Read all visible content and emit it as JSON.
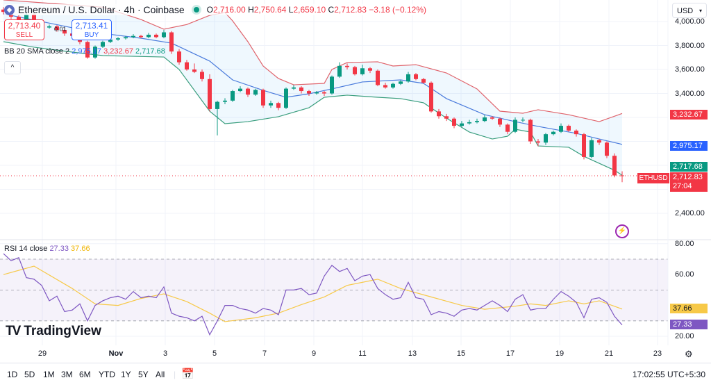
{
  "header": {
    "symbol_icon": "ethereum-icon",
    "title": "Ethereum / U.S. Dollar · 4h · Coinbase",
    "status_dot_color": "#089981",
    "ohlc": {
      "o_label": "O",
      "o": "2,716.00",
      "h_label": "H",
      "h": "2,750.64",
      "l_label": "L",
      "l": "2,659.10",
      "c_label": "C",
      "c": "2,712.83",
      "change": "−3.18 (−0.12%)"
    }
  },
  "trade": {
    "sell_price": "2,713.40",
    "sell_label": "SELL",
    "spread": "0.01",
    "buy_price": "2,713.41",
    "buy_label": "BUY"
  },
  "bb_legend": {
    "name": "BB 20 SMA close 2",
    "basis": "2,975.17",
    "upper": "3,232.67",
    "lower": "2,717.68"
  },
  "collapse_icon": "chevron-up-icon",
  "currency": {
    "selected": "USD"
  },
  "price_axis": {
    "labels": [
      "4,000.00",
      "3,800.00",
      "3,600.00",
      "3,400.00",
      "2,400.00"
    ]
  },
  "badges": {
    "upper": "3,232.67",
    "basis": "2,975.17",
    "lower": "2,717.68",
    "last": "2,712.83",
    "countdown": "27:04",
    "symbol": "ETHUSD"
  },
  "rsi": {
    "legend": "RSI 14 close",
    "value": "27.33",
    "ma": "37.66",
    "axis_labels": [
      "80.00",
      "60.00",
      "20.00"
    ]
  },
  "time_axis": [
    "29",
    "Nov",
    "3",
    "5",
    "7",
    "9",
    "11",
    "13",
    "15",
    "17",
    "19",
    "21",
    "23"
  ],
  "toolbar": {
    "ranges": [
      "1D",
      "5D",
      "1M",
      "3M",
      "6M",
      "YTD",
      "1Y",
      "5Y",
      "All"
    ],
    "goto_icon": "calendar-goto-icon",
    "clock": "17:02:55 UTC+5:30",
    "settings_icon": "gear-icon"
  },
  "logo": "TradingView",
  "colors": {
    "up": "#089981",
    "down": "#f23645",
    "bb_upper": "#e0636b",
    "bb_basis": "#4a7bdc",
    "bb_lower": "#3a9e7e",
    "rsi": "#7e57c2",
    "rsi_ma": "#f7c948"
  },
  "chart_data": [
    {
      "type": "candlestick",
      "title": "Ethereum / U.S. Dollar · 4h · Coinbase",
      "ylim": [
        2300,
        4200
      ],
      "yticks": [
        2400,
        2600,
        2800,
        3000,
        3200,
        3400,
        3600,
        3800,
        4000
      ],
      "candles": [
        [
          4100,
          4120,
          4060,
          4080
        ],
        [
          4080,
          4095,
          4020,
          4040
        ],
        [
          4040,
          4055,
          3985,
          4000
        ],
        [
          4000,
          4075,
          3990,
          4060
        ],
        [
          4060,
          4070,
          3975,
          3990
        ],
        [
          3990,
          4000,
          3930,
          3950
        ],
        [
          3950,
          3975,
          3940,
          3960
        ],
        [
          3960,
          3970,
          3915,
          3930
        ],
        [
          3930,
          3945,
          3880,
          3900
        ],
        [
          3900,
          3915,
          3860,
          3880
        ],
        [
          3880,
          3890,
          3810,
          3830
        ],
        [
          3830,
          3840,
          3690,
          3700
        ],
        [
          3700,
          3800,
          3690,
          3790
        ],
        [
          3790,
          3840,
          3780,
          3830
        ],
        [
          3830,
          3860,
          3820,
          3850
        ],
        [
          3850,
          3870,
          3840,
          3860
        ],
        [
          3860,
          3880,
          3850,
          3870
        ],
        [
          3870,
          3895,
          3860,
          3880
        ],
        [
          3880,
          3890,
          3860,
          3870
        ],
        [
          3870,
          3905,
          3860,
          3890
        ],
        [
          3890,
          3900,
          3860,
          3870
        ],
        [
          3870,
          3930,
          3860,
          3910
        ],
        [
          3910,
          3920,
          3730,
          3750
        ],
        [
          3750,
          3770,
          3640,
          3660
        ],
        [
          3660,
          3680,
          3590,
          3600
        ],
        [
          3600,
          3650,
          3570,
          3580
        ],
        [
          3580,
          3600,
          3500,
          3520
        ],
        [
          3520,
          3560,
          3250,
          3270
        ],
        [
          3270,
          3340,
          3050,
          3330
        ],
        [
          3330,
          3360,
          3310,
          3340
        ],
        [
          3340,
          3430,
          3330,
          3420
        ],
        [
          3420,
          3460,
          3410,
          3440
        ],
        [
          3440,
          3450,
          3370,
          3390
        ],
        [
          3390,
          3440,
          3380,
          3430
        ],
        [
          3430,
          3440,
          3280,
          3300
        ],
        [
          3300,
          3340,
          3280,
          3320
        ],
        [
          3320,
          3330,
          3260,
          3280
        ],
        [
          3280,
          3450,
          3270,
          3440
        ],
        [
          3440,
          3470,
          3430,
          3450
        ],
        [
          3450,
          3460,
          3400,
          3420
        ],
        [
          3420,
          3430,
          3380,
          3400
        ],
        [
          3400,
          3420,
          3390,
          3410
        ],
        [
          3410,
          3420,
          3380,
          3400
        ],
        [
          3400,
          3550,
          3390,
          3540
        ],
        [
          3540,
          3660,
          3530,
          3630
        ],
        [
          3630,
          3650,
          3600,
          3620
        ],
        [
          3620,
          3630,
          3550,
          3560
        ],
        [
          3560,
          3640,
          3550,
          3610
        ],
        [
          3610,
          3620,
          3570,
          3590
        ],
        [
          3590,
          3600,
          3460,
          3470
        ],
        [
          3470,
          3490,
          3440,
          3450
        ],
        [
          3450,
          3490,
          3440,
          3480
        ],
        [
          3480,
          3510,
          3470,
          3500
        ],
        [
          3500,
          3580,
          3490,
          3560
        ],
        [
          3560,
          3570,
          3510,
          3520
        ],
        [
          3520,
          3530,
          3480,
          3490
        ],
        [
          3490,
          3500,
          3240,
          3250
        ],
        [
          3250,
          3270,
          3190,
          3210
        ],
        [
          3210,
          3230,
          3170,
          3190
        ],
        [
          3190,
          3200,
          3110,
          3130
        ],
        [
          3130,
          3170,
          3120,
          3150
        ],
        [
          3150,
          3180,
          3140,
          3160
        ],
        [
          3160,
          3190,
          3150,
          3170
        ],
        [
          3170,
          3220,
          3160,
          3200
        ],
        [
          3200,
          3210,
          3180,
          3190
        ],
        [
          3190,
          3200,
          3120,
          3140
        ],
        [
          3140,
          3150,
          3060,
          3080
        ],
        [
          3080,
          3200,
          3070,
          3180
        ],
        [
          3180,
          3200,
          3160,
          3180
        ],
        [
          3180,
          3190,
          2980,
          3000
        ],
        [
          3000,
          3020,
          2960,
          2990
        ],
        [
          2990,
          3070,
          2970,
          3060
        ],
        [
          3060,
          3090,
          3050,
          3080
        ],
        [
          3080,
          3150,
          3070,
          3130
        ],
        [
          3130,
          3140,
          3080,
          3090
        ],
        [
          3090,
          3100,
          3040,
          3060
        ],
        [
          3060,
          3070,
          2850,
          2870
        ],
        [
          2870,
          3030,
          2860,
          3010
        ],
        [
          3010,
          3020,
          2970,
          2990
        ],
        [
          2990,
          3000,
          2860,
          2880
        ],
        [
          2880,
          2900,
          2700,
          2716
        ],
        [
          2716,
          2750.64,
          2659.1,
          2712.83
        ]
      ],
      "bollinger": {
        "upper": [
          [
            0,
            4180
          ],
          [
            13,
            4120
          ],
          [
            18,
            4017
          ],
          [
            21,
            3936
          ],
          [
            24,
            3975
          ],
          [
            27,
            4052
          ],
          [
            29,
            4075
          ],
          [
            30,
            4006
          ],
          [
            32,
            3832
          ],
          [
            34,
            3629
          ],
          [
            36,
            3525
          ],
          [
            38,
            3472
          ],
          [
            42,
            3484
          ],
          [
            43,
            3600
          ],
          [
            45,
            3658
          ],
          [
            49,
            3664
          ],
          [
            51,
            3629
          ],
          [
            54,
            3640
          ],
          [
            58,
            3571
          ],
          [
            62,
            3438
          ],
          [
            65,
            3252
          ],
          [
            68,
            3235
          ],
          [
            70,
            3264
          ],
          [
            74,
            3223
          ],
          [
            78,
            3165
          ],
          [
            81,
            3232.67
          ]
        ],
        "basis": [
          [
            0,
            4064
          ],
          [
            9,
            3948
          ],
          [
            13,
            3901
          ],
          [
            18,
            3861
          ],
          [
            22,
            3820
          ],
          [
            27,
            3670
          ],
          [
            30,
            3513
          ],
          [
            34,
            3426
          ],
          [
            37,
            3368
          ],
          [
            40,
            3397
          ],
          [
            43,
            3438
          ],
          [
            47,
            3496
          ],
          [
            52,
            3513
          ],
          [
            55,
            3484
          ],
          [
            58,
            3357
          ],
          [
            63,
            3223
          ],
          [
            67,
            3165
          ],
          [
            70,
            3125
          ],
          [
            75,
            3067
          ],
          [
            78,
            3020
          ],
          [
            81,
            2975.17
          ]
        ],
        "lower": [
          [
            0,
            3832
          ],
          [
            4,
            3786
          ],
          [
            9,
            3745
          ],
          [
            13,
            3716
          ],
          [
            21,
            3704
          ],
          [
            23,
            3600
          ],
          [
            27,
            3252
          ],
          [
            29,
            3148
          ],
          [
            32,
            3165
          ],
          [
            36,
            3206
          ],
          [
            40,
            3281
          ],
          [
            42,
            3368
          ],
          [
            45,
            3386
          ],
          [
            49,
            3368
          ],
          [
            52,
            3357
          ],
          [
            55,
            3322
          ],
          [
            58,
            3194
          ],
          [
            61,
            3078
          ],
          [
            64,
            3020
          ],
          [
            66,
            3043
          ],
          [
            67,
            3101
          ],
          [
            69,
            3078
          ],
          [
            70,
            2962
          ],
          [
            74,
            2951
          ],
          [
            76,
            2875
          ],
          [
            80,
            2759
          ],
          [
            81,
            2717.68
          ]
        ]
      },
      "last_price": 2712.83
    },
    {
      "type": "line",
      "title": "RSI 14 close",
      "ylim": [
        15,
        85
      ],
      "bands": [
        30,
        50,
        70
      ],
      "rsi": [
        73.6,
        69,
        71,
        58,
        57,
        53,
        43,
        46,
        36,
        37,
        41,
        30,
        40,
        43,
        45,
        46,
        44,
        49,
        45,
        46,
        45,
        52,
        35,
        33,
        32,
        30,
        33,
        21,
        30,
        40,
        40,
        38,
        37,
        35,
        38,
        37,
        34,
        50,
        50,
        51,
        47,
        48,
        59,
        66,
        62,
        64,
        56,
        59,
        60,
        51,
        47,
        44,
        45,
        55,
        45,
        44,
        34,
        36,
        35,
        33,
        37,
        38,
        37,
        40,
        43,
        40,
        36,
        44,
        47,
        37,
        38,
        38,
        44,
        49,
        46,
        42,
        32,
        44,
        45,
        42,
        33,
        27.33
      ],
      "rsi_ma": [
        [
          0,
          60
        ],
        [
          4,
          65.5
        ],
        [
          9,
          51
        ],
        [
          12,
          41
        ],
        [
          15,
          40
        ],
        [
          18,
          44.5
        ],
        [
          21,
          47.5
        ],
        [
          24,
          42.5
        ],
        [
          27,
          35
        ],
        [
          29,
          29.5
        ],
        [
          33,
          32
        ],
        [
          36,
          35
        ],
        [
          39,
          40.5
        ],
        [
          42,
          45.5
        ],
        [
          45,
          53
        ],
        [
          49,
          57
        ],
        [
          52,
          51
        ],
        [
          56,
          45.5
        ],
        [
          60,
          40
        ],
        [
          63,
          37.5
        ],
        [
          67,
          39.5
        ],
        [
          69,
          41
        ],
        [
          71,
          40
        ],
        [
          74,
          43
        ],
        [
          76,
          41
        ],
        [
          78,
          43
        ],
        [
          81,
          37.66
        ]
      ]
    }
  ]
}
